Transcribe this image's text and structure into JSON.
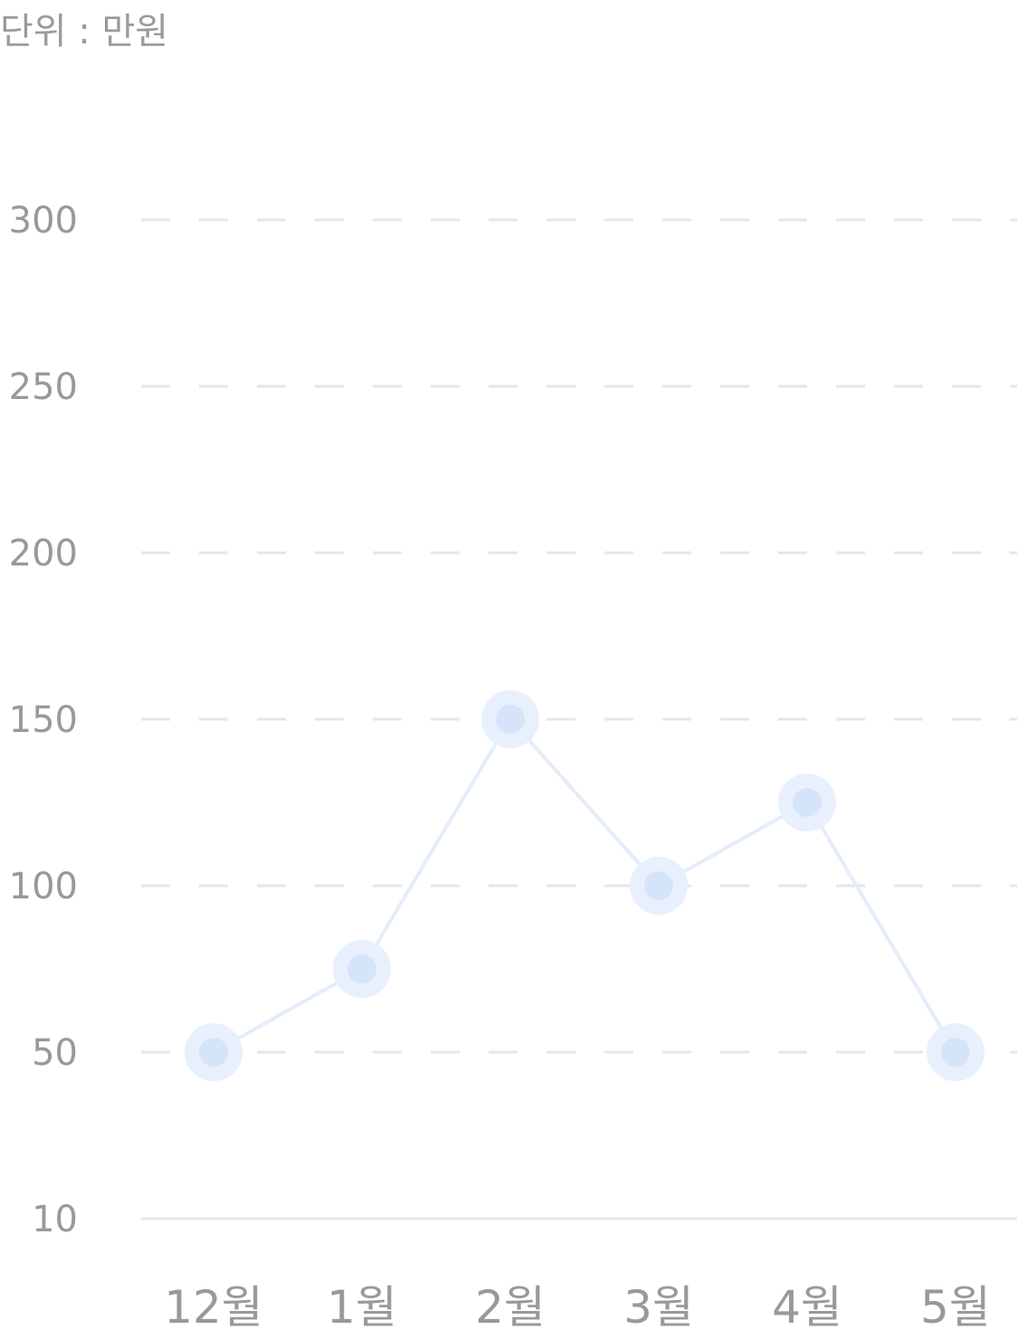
{
  "unit_label": "단위 : 만원",
  "colors": {
    "line": "#e4edfb",
    "point_outer": "#e8f0fd",
    "point_inner": "#d6e4fa",
    "grid": "#e6e6e6",
    "baseline": "#e6e6e6",
    "tick_text": "#999999"
  },
  "chart_data": {
    "type": "line",
    "categories": [
      "12월",
      "1월",
      "2월",
      "3월",
      "4월",
      "5월"
    ],
    "y_ticks": [
      "300",
      "250",
      "200",
      "150",
      "100",
      "50",
      "10"
    ],
    "series": [
      {
        "values": [
          50,
          75,
          150,
          100,
          125,
          50
        ]
      }
    ],
    "xlabel": "",
    "ylabel": "",
    "ylim": [
      10,
      300
    ],
    "grid": true,
    "grid_style": "dashed",
    "legend": "none"
  }
}
